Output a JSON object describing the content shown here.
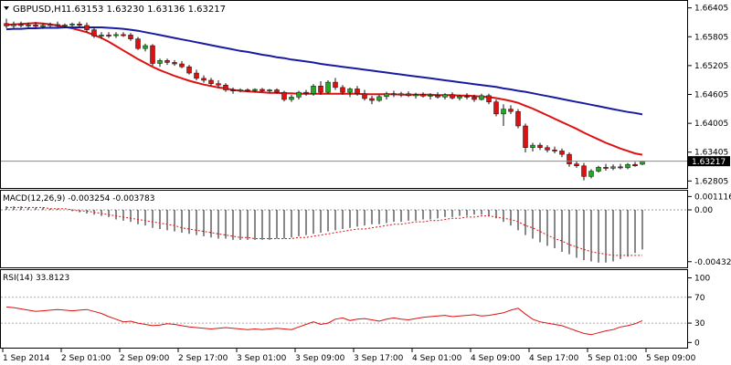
{
  "chart_data": [
    {
      "type": "candlestick",
      "panel": "main",
      "title": "GBPUSD,H1",
      "quote_text": "1.63153 1.63230 1.63136 1.63217",
      "current_price": 1.63217,
      "current_price_label": "1.63217",
      "ylim": [
        1.6266,
        1.6655
      ],
      "yticks": [
        "1.66405",
        "1.65805",
        "1.65205",
        "1.64605",
        "1.64005",
        "1.63405",
        "1.62805"
      ],
      "ytick_values": [
        1.66405,
        1.65805,
        1.65205,
        1.64605,
        1.64005,
        1.63405,
        1.62805
      ],
      "up_color": "#22aa22",
      "down_color": "#dd1111",
      "candles": [
        {
          "o": 1.6608,
          "h": 1.6618,
          "l": 1.6598,
          "c": 1.6603
        },
        {
          "o": 1.6603,
          "h": 1.6612,
          "l": 1.6598,
          "c": 1.6606
        },
        {
          "o": 1.6606,
          "h": 1.6612,
          "l": 1.66,
          "c": 1.6604
        },
        {
          "o": 1.6604,
          "h": 1.661,
          "l": 1.6599,
          "c": 1.6605
        },
        {
          "o": 1.6605,
          "h": 1.6611,
          "l": 1.66,
          "c": 1.6602
        },
        {
          "o": 1.6602,
          "h": 1.6608,
          "l": 1.6597,
          "c": 1.6604
        },
        {
          "o": 1.6604,
          "h": 1.661,
          "l": 1.66,
          "c": 1.6606
        },
        {
          "o": 1.6606,
          "h": 1.6612,
          "l": 1.6601,
          "c": 1.6603
        },
        {
          "o": 1.6603,
          "h": 1.6608,
          "l": 1.6598,
          "c": 1.6605
        },
        {
          "o": 1.6605,
          "h": 1.661,
          "l": 1.6601,
          "c": 1.6607
        },
        {
          "o": 1.6607,
          "h": 1.6612,
          "l": 1.66,
          "c": 1.6604
        },
        {
          "o": 1.6604,
          "h": 1.661,
          "l": 1.659,
          "c": 1.6595
        },
        {
          "o": 1.6595,
          "h": 1.66,
          "l": 1.6578,
          "c": 1.6582
        },
        {
          "o": 1.6582,
          "h": 1.659,
          "l": 1.6576,
          "c": 1.6584
        },
        {
          "o": 1.6584,
          "h": 1.659,
          "l": 1.6578,
          "c": 1.6583
        },
        {
          "o": 1.6583,
          "h": 1.659,
          "l": 1.6578,
          "c": 1.6585
        },
        {
          "o": 1.6585,
          "h": 1.659,
          "l": 1.658,
          "c": 1.6584
        },
        {
          "o": 1.6584,
          "h": 1.6588,
          "l": 1.6572,
          "c": 1.6576
        },
        {
          "o": 1.6576,
          "h": 1.658,
          "l": 1.6553,
          "c": 1.6556
        },
        {
          "o": 1.6556,
          "h": 1.6566,
          "l": 1.655,
          "c": 1.6562
        },
        {
          "o": 1.6562,
          "h": 1.6565,
          "l": 1.652,
          "c": 1.6525
        },
        {
          "o": 1.6525,
          "h": 1.6535,
          "l": 1.6518,
          "c": 1.6531
        },
        {
          "o": 1.6531,
          "h": 1.6535,
          "l": 1.6522,
          "c": 1.6527
        },
        {
          "o": 1.6527,
          "h": 1.6532,
          "l": 1.652,
          "c": 1.6524
        },
        {
          "o": 1.6524,
          "h": 1.653,
          "l": 1.6515,
          "c": 1.6518
        },
        {
          "o": 1.6518,
          "h": 1.6522,
          "l": 1.6502,
          "c": 1.6505
        },
        {
          "o": 1.6505,
          "h": 1.6512,
          "l": 1.649,
          "c": 1.6494
        },
        {
          "o": 1.6494,
          "h": 1.65,
          "l": 1.6485,
          "c": 1.649
        },
        {
          "o": 1.649,
          "h": 1.6495,
          "l": 1.6478,
          "c": 1.6483
        },
        {
          "o": 1.6483,
          "h": 1.649,
          "l": 1.6475,
          "c": 1.648
        },
        {
          "o": 1.648,
          "h": 1.6484,
          "l": 1.6466,
          "c": 1.647
        },
        {
          "o": 1.647,
          "h": 1.6475,
          "l": 1.6462,
          "c": 1.6468
        },
        {
          "o": 1.6468,
          "h": 1.6473,
          "l": 1.6465,
          "c": 1.647
        },
        {
          "o": 1.647,
          "h": 1.6473,
          "l": 1.6466,
          "c": 1.6469
        },
        {
          "o": 1.6469,
          "h": 1.6473,
          "l": 1.6465,
          "c": 1.6471
        },
        {
          "o": 1.6471,
          "h": 1.6474,
          "l": 1.6466,
          "c": 1.6468
        },
        {
          "o": 1.6468,
          "h": 1.6472,
          "l": 1.6464,
          "c": 1.647
        },
        {
          "o": 1.647,
          "h": 1.6473,
          "l": 1.6462,
          "c": 1.6465
        },
        {
          "o": 1.6465,
          "h": 1.6468,
          "l": 1.6446,
          "c": 1.645
        },
        {
          "o": 1.645,
          "h": 1.646,
          "l": 1.6445,
          "c": 1.6455
        },
        {
          "o": 1.6455,
          "h": 1.6468,
          "l": 1.645,
          "c": 1.6465
        },
        {
          "o": 1.6465,
          "h": 1.647,
          "l": 1.6458,
          "c": 1.6462
        },
        {
          "o": 1.6462,
          "h": 1.6482,
          "l": 1.6458,
          "c": 1.6478
        },
        {
          "o": 1.6478,
          "h": 1.6488,
          "l": 1.646,
          "c": 1.6465
        },
        {
          "o": 1.6465,
          "h": 1.649,
          "l": 1.6462,
          "c": 1.6486
        },
        {
          "o": 1.6486,
          "h": 1.6495,
          "l": 1.647,
          "c": 1.6475
        },
        {
          "o": 1.6475,
          "h": 1.648,
          "l": 1.646,
          "c": 1.6465
        },
        {
          "o": 1.6465,
          "h": 1.6475,
          "l": 1.6455,
          "c": 1.6472
        },
        {
          "o": 1.6472,
          "h": 1.6478,
          "l": 1.6458,
          "c": 1.6462
        },
        {
          "o": 1.6462,
          "h": 1.647,
          "l": 1.6448,
          "c": 1.6452
        },
        {
          "o": 1.6452,
          "h": 1.6458,
          "l": 1.644,
          "c": 1.6448
        },
        {
          "o": 1.6448,
          "h": 1.646,
          "l": 1.6445,
          "c": 1.6456
        },
        {
          "o": 1.6456,
          "h": 1.6466,
          "l": 1.645,
          "c": 1.6462
        },
        {
          "o": 1.6462,
          "h": 1.6468,
          "l": 1.6455,
          "c": 1.646
        },
        {
          "o": 1.646,
          "h": 1.6466,
          "l": 1.6455,
          "c": 1.6462
        },
        {
          "o": 1.6462,
          "h": 1.6467,
          "l": 1.6455,
          "c": 1.6458
        },
        {
          "o": 1.6458,
          "h": 1.6464,
          "l": 1.6452,
          "c": 1.646
        },
        {
          "o": 1.646,
          "h": 1.6465,
          "l": 1.6454,
          "c": 1.6457
        },
        {
          "o": 1.6457,
          "h": 1.6463,
          "l": 1.645,
          "c": 1.6459
        },
        {
          "o": 1.6459,
          "h": 1.6465,
          "l": 1.6452,
          "c": 1.6455
        },
        {
          "o": 1.6455,
          "h": 1.6463,
          "l": 1.645,
          "c": 1.646
        },
        {
          "o": 1.646,
          "h": 1.6465,
          "l": 1.645,
          "c": 1.6453
        },
        {
          "o": 1.6453,
          "h": 1.646,
          "l": 1.6448,
          "c": 1.6457
        },
        {
          "o": 1.6457,
          "h": 1.6463,
          "l": 1.645,
          "c": 1.6455
        },
        {
          "o": 1.6455,
          "h": 1.646,
          "l": 1.6445,
          "c": 1.645
        },
        {
          "o": 1.645,
          "h": 1.6462,
          "l": 1.6448,
          "c": 1.6458
        },
        {
          "o": 1.6458,
          "h": 1.6462,
          "l": 1.644,
          "c": 1.6445
        },
        {
          "o": 1.6445,
          "h": 1.645,
          "l": 1.6415,
          "c": 1.642
        },
        {
          "o": 1.642,
          "h": 1.644,
          "l": 1.6395,
          "c": 1.643
        },
        {
          "o": 1.643,
          "h": 1.6438,
          "l": 1.642,
          "c": 1.6425
        },
        {
          "o": 1.6425,
          "h": 1.643,
          "l": 1.639,
          "c": 1.6395
        },
        {
          "o": 1.6395,
          "h": 1.64,
          "l": 1.634,
          "c": 1.635
        },
        {
          "o": 1.635,
          "h": 1.636,
          "l": 1.6342,
          "c": 1.6355
        },
        {
          "o": 1.6355,
          "h": 1.636,
          "l": 1.6345,
          "c": 1.635
        },
        {
          "o": 1.635,
          "h": 1.6355,
          "l": 1.634,
          "c": 1.6345
        },
        {
          "o": 1.6345,
          "h": 1.6352,
          "l": 1.6338,
          "c": 1.6343
        },
        {
          "o": 1.6343,
          "h": 1.6348,
          "l": 1.633,
          "c": 1.6336
        },
        {
          "o": 1.6336,
          "h": 1.634,
          "l": 1.631,
          "c": 1.6316
        },
        {
          "o": 1.6316,
          "h": 1.6322,
          "l": 1.6308,
          "c": 1.6312
        },
        {
          "o": 1.6312,
          "h": 1.6318,
          "l": 1.6282,
          "c": 1.629
        },
        {
          "o": 1.629,
          "h": 1.6305,
          "l": 1.6286,
          "c": 1.6301
        },
        {
          "o": 1.6301,
          "h": 1.6312,
          "l": 1.6298,
          "c": 1.6309
        },
        {
          "o": 1.6309,
          "h": 1.6316,
          "l": 1.6302,
          "c": 1.6307
        },
        {
          "o": 1.6307,
          "h": 1.6315,
          "l": 1.6303,
          "c": 1.631
        },
        {
          "o": 1.631,
          "h": 1.6316,
          "l": 1.6305,
          "c": 1.6308
        },
        {
          "o": 1.6308,
          "h": 1.6318,
          "l": 1.6305,
          "c": 1.6315
        },
        {
          "o": 1.6315,
          "h": 1.632,
          "l": 1.631,
          "c": 1.6312
        },
        {
          "o": 1.63153,
          "h": 1.6323,
          "l": 1.63136,
          "c": 1.63217
        }
      ],
      "series": [
        {
          "color": "#dd1111",
          "values": [
            1.6605,
            1.6606,
            1.6607,
            1.6608,
            1.6609,
            1.6608,
            1.6606,
            1.6604,
            1.6601,
            1.6598,
            1.6594,
            1.659,
            1.6584,
            1.6578,
            1.657,
            1.6561,
            1.6552,
            1.6543,
            1.6534,
            1.6526,
            1.6518,
            1.6511,
            1.6505,
            1.6499,
            1.6494,
            1.6489,
            1.6485,
            1.6481,
            1.6478,
            1.6475,
            1.6473,
            1.647,
            1.6468,
            1.6467,
            1.6466,
            1.6465,
            1.6464,
            1.6464,
            1.6463,
            1.6463,
            1.6462,
            1.6462,
            1.6462,
            1.6462,
            1.6462,
            1.6462,
            1.6462,
            1.6462,
            1.6462,
            1.6461,
            1.6461,
            1.6461,
            1.6461,
            1.6461,
            1.646,
            1.646,
            1.646,
            1.646,
            1.646,
            1.6459,
            1.6459,
            1.6459,
            1.6458,
            1.6458,
            1.6457,
            1.6456,
            1.6455,
            1.6453,
            1.645,
            1.6447,
            1.6443,
            1.6437,
            1.6431,
            1.6424,
            1.6417,
            1.641,
            1.6403,
            1.6396,
            1.6389,
            1.6381,
            1.6374,
            1.6367,
            1.636,
            1.6354,
            1.6348,
            1.6343,
            1.6338,
            1.6335
          ]
        },
        {
          "color": "#1a1aa0",
          "values": [
            1.6596,
            1.6597,
            1.6597,
            1.6598,
            1.6598,
            1.6599,
            1.6599,
            1.6599,
            1.66,
            1.66,
            1.66,
            1.66,
            1.66,
            1.66,
            1.6599,
            1.6598,
            1.6597,
            1.6595,
            1.6593,
            1.659,
            1.6587,
            1.6584,
            1.6581,
            1.6578,
            1.6575,
            1.6572,
            1.6569,
            1.6566,
            1.6563,
            1.656,
            1.6557,
            1.6554,
            1.6551,
            1.6549,
            1.6546,
            1.6543,
            1.6541,
            1.6538,
            1.6536,
            1.6533,
            1.6531,
            1.6529,
            1.6527,
            1.6524,
            1.6522,
            1.652,
            1.6518,
            1.6516,
            1.6514,
            1.6512,
            1.651,
            1.6508,
            1.6506,
            1.6504,
            1.6502,
            1.65,
            1.6498,
            1.6496,
            1.6494,
            1.6492,
            1.649,
            1.6488,
            1.6486,
            1.6484,
            1.6482,
            1.648,
            1.6478,
            1.6476,
            1.6473,
            1.6471,
            1.6468,
            1.6466,
            1.6463,
            1.646,
            1.6457,
            1.6454,
            1.6451,
            1.6448,
            1.6445,
            1.6442,
            1.6439,
            1.6436,
            1.6433,
            1.643,
            1.6427,
            1.6424,
            1.6422,
            1.6419
          ]
        }
      ]
    },
    {
      "type": "bar",
      "panel": "macd",
      "title": "MACD(12,26,9) -0.003254 -0.003783",
      "ylim": [
        -0.0048,
        0.0016
      ],
      "yticks": [
        "0.001116",
        "0.00",
        "-0.004325"
      ],
      "ytick_values": [
        0.001116,
        0.0,
        -0.004325
      ],
      "values": [
        0.0003,
        0.0003,
        0.0003,
        0.0002,
        0.0002,
        0.0002,
        0.0001,
        0.0001,
        0.0,
        -0.0001,
        -0.0002,
        -0.0003,
        -0.0004,
        -0.0005,
        -0.0006,
        -0.0008,
        -0.0009,
        -0.001,
        -0.0012,
        -0.0013,
        -0.0015,
        -0.0016,
        -0.0017,
        -0.0018,
        -0.0019,
        -0.002,
        -0.0021,
        -0.0022,
        -0.0023,
        -0.0024,
        -0.0024,
        -0.0025,
        -0.0025,
        -0.0025,
        -0.0025,
        -0.0025,
        -0.0025,
        -0.0024,
        -0.0024,
        -0.0023,
        -0.0022,
        -0.0021,
        -0.002,
        -0.0019,
        -0.0018,
        -0.0017,
        -0.0016,
        -0.0015,
        -0.0014,
        -0.0013,
        -0.0012,
        -0.0012,
        -0.0011,
        -0.001,
        -0.001,
        -0.0009,
        -0.0009,
        -0.0008,
        -0.0008,
        -0.0007,
        -0.0006,
        -0.0006,
        -0.0005,
        -0.0005,
        -0.0004,
        -0.0004,
        -0.0005,
        -0.0007,
        -0.001,
        -0.0013,
        -0.0017,
        -0.0021,
        -0.0024,
        -0.0027,
        -0.003,
        -0.0032,
        -0.0035,
        -0.0037,
        -0.004,
        -0.0042,
        -0.0043,
        -0.0044,
        -0.0044,
        -0.0043,
        -0.0041,
        -0.0039,
        -0.0036,
        -0.0033
      ],
      "signal": [
        0.0002,
        0.0002,
        0.0002,
        0.0002,
        0.0002,
        0.0002,
        0.0001,
        0.0001,
        0.0001,
        0.0,
        -0.0001,
        -0.0001,
        -0.0002,
        -0.0003,
        -0.0004,
        -0.0005,
        -0.0006,
        -0.0007,
        -0.0008,
        -0.0009,
        -0.001,
        -0.0011,
        -0.0012,
        -0.0013,
        -0.0015,
        -0.0016,
        -0.0017,
        -0.0018,
        -0.0019,
        -0.002,
        -0.0021,
        -0.0022,
        -0.0023,
        -0.0023,
        -0.0024,
        -0.0024,
        -0.0024,
        -0.0024,
        -0.0024,
        -0.0024,
        -0.0023,
        -0.0023,
        -0.0022,
        -0.0021,
        -0.002,
        -0.0019,
        -0.0018,
        -0.0017,
        -0.0016,
        -0.0016,
        -0.0015,
        -0.0014,
        -0.0013,
        -0.0012,
        -0.0012,
        -0.0011,
        -0.001,
        -0.001,
        -0.0009,
        -0.0009,
        -0.0008,
        -0.0007,
        -0.0007,
        -0.0006,
        -0.0006,
        -0.0005,
        -0.0005,
        -0.0006,
        -0.0007,
        -0.0008,
        -0.001,
        -0.0013,
        -0.0015,
        -0.0018,
        -0.0021,
        -0.0024,
        -0.0026,
        -0.0029,
        -0.0031,
        -0.0033,
        -0.0035,
        -0.0036,
        -0.0037,
        -0.0038,
        -0.0038,
        -0.0038,
        -0.0038,
        -0.0038
      ],
      "bar_color": "#111111",
      "signal_color": "#dd1111"
    },
    {
      "type": "line",
      "panel": "rsi",
      "title": "RSI(14) 33.8123",
      "ylim": [
        -8,
        112
      ],
      "yticks": [
        "100",
        "70",
        "30",
        "0"
      ],
      "ytick_values": [
        100,
        70,
        30,
        0
      ],
      "levels": [
        70,
        30
      ],
      "values": [
        55,
        54,
        52,
        50,
        48,
        49,
        50,
        51,
        50,
        49,
        50,
        51,
        48,
        45,
        40,
        36,
        32,
        33,
        30,
        28,
        26,
        27,
        29,
        28,
        26,
        24,
        23,
        22,
        21,
        22,
        23,
        22,
        21,
        20,
        21,
        20,
        21,
        22,
        21,
        20,
        24,
        28,
        32,
        28,
        30,
        36,
        38,
        34,
        36,
        37,
        35,
        33,
        36,
        38,
        36,
        35,
        37,
        39,
        40,
        41,
        42,
        40,
        41,
        42,
        43,
        41,
        42,
        44,
        46,
        50,
        53,
        44,
        36,
        32,
        30,
        28,
        26,
        22,
        18,
        14,
        12,
        15,
        18,
        20,
        24,
        26,
        29,
        33.8
      ],
      "line_color": "#dd1111"
    }
  ],
  "x_axis": {
    "labels": [
      "1 Sep 2014",
      "2 Sep 01:00",
      "2 Sep 09:00",
      "2 Sep 17:00",
      "3 Sep 01:00",
      "3 Sep 09:00",
      "3 Sep 17:00",
      "4 Sep 01:00",
      "4 Sep 09:00",
      "4 Sep 17:00",
      "5 Sep 01:00",
      "5 Sep 09:00"
    ],
    "label_bar_index": [
      0,
      8,
      16,
      24,
      32,
      40,
      48,
      56,
      64,
      72,
      80,
      88
    ]
  }
}
